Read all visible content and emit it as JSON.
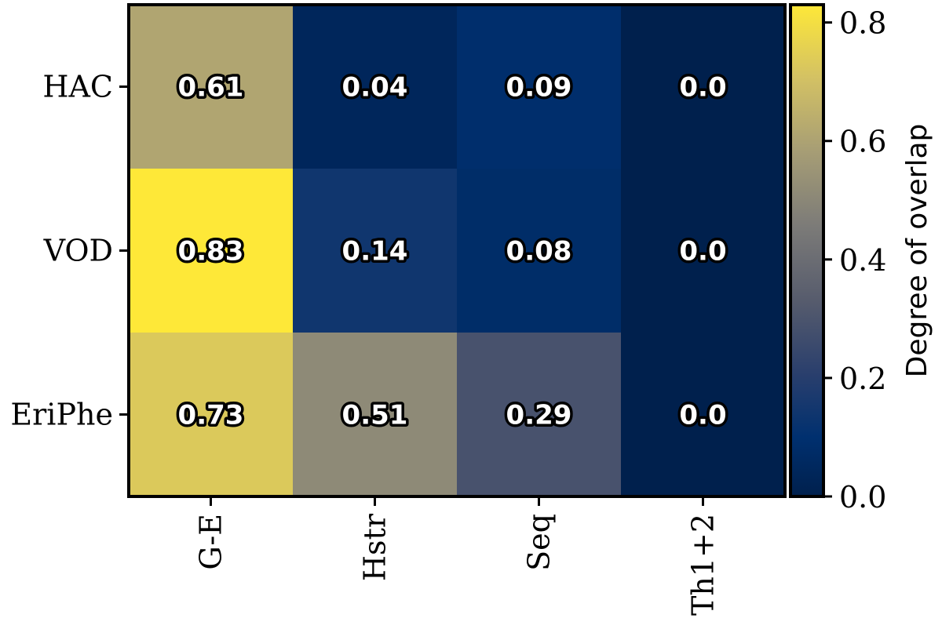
{
  "chart_data": {
    "type": "heatmap",
    "rows": [
      "HAC",
      "VOD",
      "EriPhe"
    ],
    "columns": [
      "G-E",
      "Hstr",
      "Seq",
      "Th1+2"
    ],
    "values": [
      [
        0.61,
        0.04,
        0.09,
        0.0
      ],
      [
        0.83,
        0.14,
        0.08,
        0.0
      ],
      [
        0.73,
        0.51,
        0.29,
        0.0
      ]
    ],
    "value_labels": [
      [
        "0.61",
        "0.04",
        "0.09",
        "0.0"
      ],
      [
        "0.83",
        "0.14",
        "0.08",
        "0.0"
      ],
      [
        "0.73",
        "0.51",
        "0.29",
        "0.0"
      ]
    ],
    "colormap": "cividis",
    "colorbar": {
      "label": "Degree of overlap",
      "vmin": 0.0,
      "vmax": 0.83,
      "ticks": [
        0.0,
        0.2,
        0.4,
        0.6,
        0.8
      ],
      "tick_labels": [
        "0.0",
        "0.2",
        "0.4",
        "0.6",
        "0.8"
      ]
    },
    "title": "",
    "xlabel": "",
    "ylabel": ""
  },
  "colors": {
    "low": "#00204d",
    "high": "#fee838",
    "frame": "#000000"
  }
}
